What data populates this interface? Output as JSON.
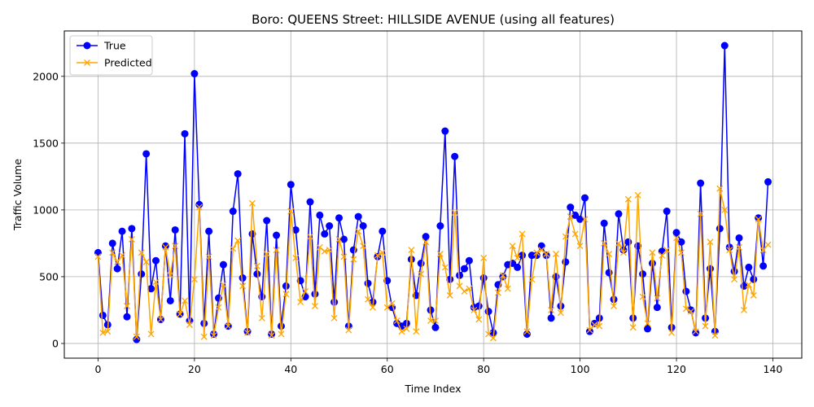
{
  "chart_data": {
    "type": "line",
    "title": "Boro: QUEENS Street: HILLSIDE AVENUE (using all features)",
    "xlabel": "Time Index",
    "ylabel": "Traffic Volume",
    "xlim": [
      -7,
      146
    ],
    "ylim": [
      -110,
      2340
    ],
    "xticks": [
      0,
      20,
      40,
      60,
      80,
      100,
      120,
      140
    ],
    "yticks": [
      0,
      500,
      1000,
      1500,
      2000
    ],
    "grid": true,
    "legend_position": "upper-left",
    "series": [
      {
        "name": "True",
        "color": "#0000ff",
        "marker": "circle",
        "values": [
          680,
          210,
          140,
          750,
          560,
          840,
          200,
          860,
          30,
          520,
          1420,
          410,
          620,
          180,
          730,
          320,
          850,
          220,
          1570,
          170,
          2020,
          1040,
          150,
          840,
          70,
          340,
          590,
          130,
          990,
          1270,
          490,
          90,
          820,
          520,
          350,
          920,
          70,
          810,
          130,
          430,
          1190,
          850,
          470,
          350,
          1060,
          370,
          960,
          820,
          880,
          310,
          940,
          780,
          130,
          700,
          950,
          880,
          450,
          310,
          650,
          840,
          470,
          270,
          150,
          130,
          150,
          630,
          360,
          600,
          800,
          250,
          120,
          880,
          1590,
          480,
          1400,
          510,
          560,
          620,
          270,
          280,
          490,
          240,
          80,
          440,
          500,
          590,
          600,
          570,
          660,
          70,
          660,
          660,
          730,
          660,
          190,
          500,
          280,
          610,
          1020,
          960,
          930,
          1090,
          90,
          150,
          190,
          900,
          530,
          330,
          970,
          700,
          760,
          190,
          730,
          520,
          110,
          600,
          270,
          690,
          990,
          120,
          830,
          760,
          390,
          250,
          80,
          1200,
          190,
          560,
          90,
          860,
          2230,
          720,
          540,
          790,
          430,
          570,
          480,
          940,
          580,
          1210
        ]
      },
      {
        "name": "Predicted",
        "color": "#ffa500",
        "marker": "x",
        "values": [
          650,
          80,
          90,
          680,
          610,
          660,
          280,
          780,
          50,
          680,
          610,
          70,
          460,
          180,
          720,
          510,
          730,
          220,
          320,
          140,
          480,
          1020,
          50,
          650,
          60,
          270,
          440,
          130,
          710,
          770,
          430,
          80,
          1050,
          580,
          190,
          670,
          60,
          700,
          70,
          370,
          990,
          640,
          310,
          390,
          800,
          280,
          720,
          690,
          700,
          190,
          780,
          650,
          100,
          630,
          840,
          730,
          330,
          270,
          660,
          680,
          270,
          300,
          170,
          90,
          110,
          700,
          90,
          520,
          760,
          170,
          170,
          670,
          570,
          360,
          980,
          430,
          390,
          410,
          250,
          180,
          640,
          70,
          40,
          380,
          510,
          410,
          730,
          640,
          820,
          90,
          480,
          680,
          700,
          670,
          250,
          670,
          230,
          800,
          950,
          820,
          730,
          930,
          100,
          140,
          130,
          750,
          670,
          280,
          750,
          680,
          1080,
          120,
          1110,
          350,
          150,
          680,
          340,
          660,
          700,
          80,
          790,
          680,
          260,
          240,
          90,
          970,
          130,
          760,
          60,
          1160,
          1000,
          700,
          480,
          720,
          250,
          440,
          360,
          930,
          700,
          740
        ]
      }
    ]
  }
}
